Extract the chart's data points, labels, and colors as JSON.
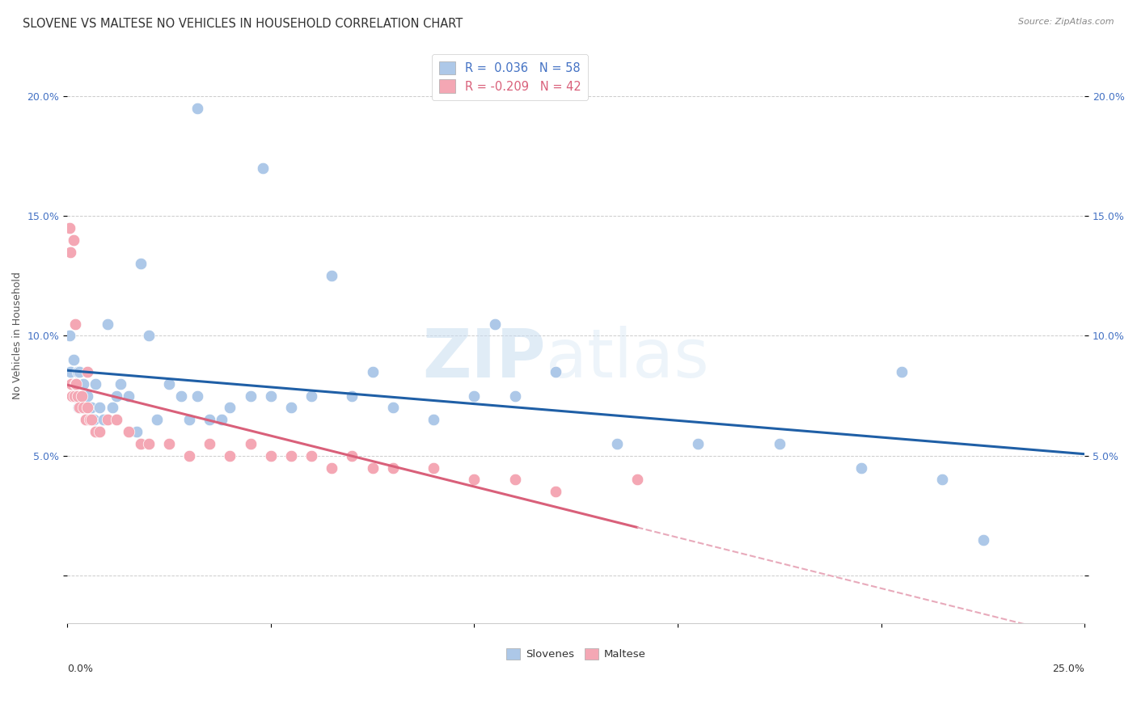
{
  "title": "SLOVENE VS MALTESE NO VEHICLES IN HOUSEHOLD CORRELATION CHART",
  "source": "Source: ZipAtlas.com",
  "ylabel": "No Vehicles in Household",
  "xlim": [
    0,
    25
  ],
  "ylim": [
    -2,
    22
  ],
  "legend_entry1": "R =  0.036   N = 58",
  "legend_entry2": "R = -0.209   N = 42",
  "legend_label1": "Slovenes",
  "legend_label2": "Maltese",
  "slovene_color": "#adc8e8",
  "maltese_color": "#f4a7b4",
  "slovene_line_color": "#1f5fa6",
  "maltese_line_color": "#d9607a",
  "maltese_dash_color": "#e8aabb",
  "background_color": "#ffffff",
  "grid_color": "#cccccc",
  "slovenes_x": [
    0.05,
    0.08,
    0.1,
    0.15,
    0.18,
    0.2,
    0.22,
    0.25,
    0.28,
    0.3,
    0.35,
    0.4,
    0.45,
    0.5,
    0.55,
    0.6,
    0.65,
    0.7,
    0.8,
    0.9,
    1.0,
    1.1,
    1.2,
    1.3,
    1.5,
    1.7,
    2.0,
    2.2,
    2.5,
    2.8,
    3.0,
    3.2,
    3.5,
    3.8,
    4.0,
    4.5,
    5.0,
    5.5,
    6.0,
    7.0,
    7.5,
    8.0,
    9.0,
    10.0,
    11.0,
    12.0,
    13.5,
    15.5,
    17.5,
    19.5,
    1.8,
    6.5,
    10.5,
    20.5,
    21.5,
    22.5,
    3.2,
    4.8
  ],
  "slovenes_y": [
    10.0,
    8.5,
    8.0,
    9.0,
    7.5,
    8.0,
    7.5,
    8.5,
    7.0,
    8.5,
    7.0,
    8.0,
    7.5,
    7.5,
    6.5,
    7.0,
    6.5,
    8.0,
    7.0,
    6.5,
    10.5,
    7.0,
    7.5,
    8.0,
    7.5,
    6.0,
    10.0,
    6.5,
    8.0,
    7.5,
    6.5,
    7.5,
    6.5,
    6.5,
    7.0,
    7.5,
    7.5,
    7.0,
    7.5,
    7.5,
    8.5,
    7.0,
    6.5,
    7.5,
    7.5,
    8.5,
    5.5,
    5.5,
    5.5,
    4.5,
    13.0,
    12.5,
    10.5,
    8.5,
    4.0,
    1.5,
    19.5,
    17.0
  ],
  "maltese_x": [
    0.05,
    0.08,
    0.1,
    0.12,
    0.15,
    0.18,
    0.2,
    0.22,
    0.25,
    0.3,
    0.35,
    0.4,
    0.45,
    0.5,
    0.55,
    0.6,
    0.7,
    0.8,
    1.0,
    1.2,
    1.5,
    1.8,
    2.0,
    2.5,
    3.0,
    3.5,
    4.0,
    4.5,
    5.0,
    5.5,
    6.0,
    6.5,
    7.0,
    7.5,
    8.0,
    9.0,
    10.0,
    11.0,
    12.0,
    14.0,
    0.2,
    0.5
  ],
  "maltese_y": [
    14.5,
    13.5,
    8.0,
    7.5,
    14.0,
    7.5,
    8.0,
    8.0,
    7.5,
    7.0,
    7.5,
    7.0,
    6.5,
    7.0,
    6.5,
    6.5,
    6.0,
    6.0,
    6.5,
    6.5,
    6.0,
    5.5,
    5.5,
    5.5,
    5.0,
    5.5,
    5.0,
    5.5,
    5.0,
    5.0,
    5.0,
    4.5,
    5.0,
    4.5,
    4.5,
    4.5,
    4.0,
    4.0,
    3.5,
    4.0,
    10.5,
    8.5
  ],
  "watermark_zip": "ZIP",
  "watermark_atlas": "atlas",
  "title_fontsize": 10.5,
  "axis_fontsize": 9,
  "tick_fontsize": 9
}
